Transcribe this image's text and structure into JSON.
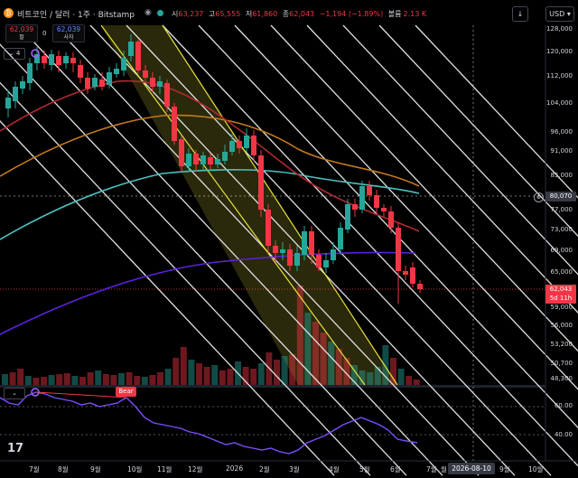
{
  "header": {
    "ticker_icon": "bitcoin-icon",
    "title": "비트코인 / 달러 · 1주 · Bitstamp",
    "ohlc": [
      {
        "key": "시",
        "value": "63,237"
      },
      {
        "key": "고",
        "value": "65,555"
      },
      {
        "key": "저",
        "value": "61,860"
      },
      {
        "key": "종",
        "value": "62,043"
      }
    ],
    "change": "−1,194 (−1.89%)",
    "volume_label": "볼륨",
    "volume_value": "2.13 K",
    "download_icon": "download-icon",
    "currency_button": "USD",
    "dropdown_icon": "chevron-down-icon"
  },
  "price_boxes": {
    "sell_price": "62,039",
    "sell_label": "팔",
    "spread": "0",
    "buy_price": "62,039",
    "buy_label": "사자"
  },
  "indicator_toggle": "4",
  "price_axis": {
    "ticks": [
      "128,000",
      "120,000",
      "112,000",
      "104,000",
      "96,000",
      "91,000",
      "85,000",
      "77,000",
      "73,000",
      "69,000",
      "65,000",
      "59,000",
      "56,000",
      "53,200",
      "50,700",
      "48,300"
    ],
    "crosshair_tag": "80,070",
    "last_price_tag": "62,043",
    "countdown_tag": "5d 11h",
    "info_icon": "gear-icon"
  },
  "time_axis": {
    "labels": [
      "7월",
      "8월",
      "9월",
      "10월",
      "11월",
      "12월",
      "2026",
      "2월",
      "3월",
      "4월",
      "5월",
      "6월",
      "7월",
      "월",
      "9월",
      "10월"
    ],
    "date_tag": "2026-08-10"
  },
  "oscillator": {
    "toggle_icon": "chevron-down-icon",
    "signal_tag": "Bear",
    "ticks": [
      "60.00",
      "40.00"
    ]
  },
  "colors": {
    "bull": "#26a69a",
    "bear": "#f23645",
    "ma_red": "#b22833",
    "ma_orange": "#c2791e",
    "ma_teal": "#4ec0c0",
    "ma_purple": "#5b22e0",
    "channel_yellow": "#e8e23c",
    "rsi_line": "#7e4dff"
  }
}
